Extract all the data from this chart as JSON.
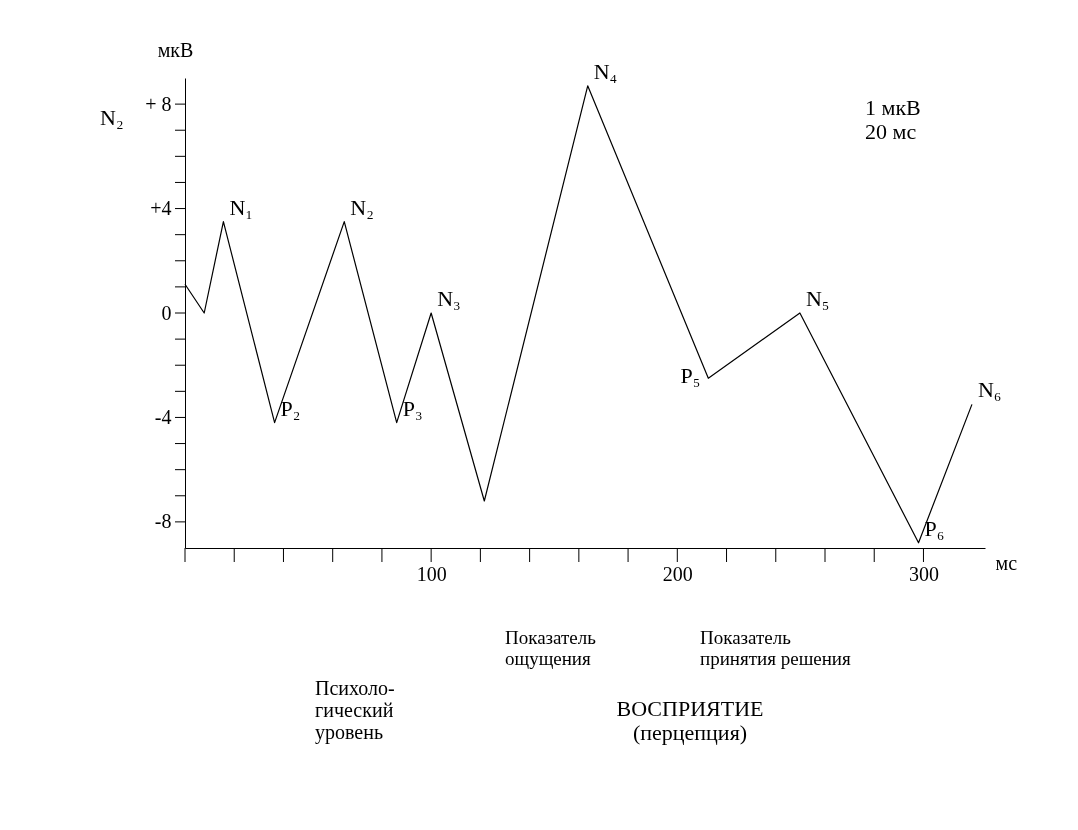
{
  "chart_data": {
    "type": "line",
    "xlabel": "мс",
    "ylabel": "мкВ",
    "x": [
      0,
      7.8,
      15.6,
      36.4,
      64.7,
      86,
      100,
      121.6,
      163.6,
      212.6,
      249.8,
      298,
      319.7
    ],
    "series": [
      {
        "color": "#000000",
        "values": [
          1.1,
          0,
          3.5,
          -4.2,
          3.5,
          -4.2,
          0,
          -7.2,
          8.7,
          -2.5,
          0,
          -8.8,
          -3.5
        ]
      }
    ],
    "xlim": [
      0,
      325
    ],
    "ylim": [
      -9,
      9
    ],
    "xticks": [
      {
        "value": 0,
        "label": null
      },
      {
        "value": 20,
        "label": null
      },
      {
        "value": 40,
        "label": null
      },
      {
        "value": 60,
        "label": null
      },
      {
        "value": 80,
        "label": null
      },
      100,
      {
        "value": 120,
        "label": null
      },
      {
        "value": 140,
        "label": null
      },
      {
        "value": 160,
        "label": null
      },
      {
        "value": 180,
        "label": null
      },
      200,
      {
        "value": 220,
        "label": null
      },
      {
        "value": 240,
        "label": null
      },
      {
        "value": 260,
        "label": null
      },
      {
        "value": 280,
        "label": null
      },
      300
    ],
    "yticks": [
      {
        "value": -8,
        "label": "-8"
      },
      {
        "value": -7,
        "label": null
      },
      {
        "value": -6,
        "label": null
      },
      {
        "value": -5,
        "label": null
      },
      {
        "value": -4,
        "label": "-4"
      },
      {
        "value": -3,
        "label": null
      },
      {
        "value": -2,
        "label": null
      },
      {
        "value": -1,
        "label": null
      },
      0,
      {
        "value": 1,
        "label": null
      },
      {
        "value": 2,
        "label": null
      },
      {
        "value": 3,
        "label": null
      },
      {
        "value": 4,
        "label": "+4"
      },
      {
        "value": 5,
        "label": null
      },
      {
        "value": 6,
        "label": null
      },
      {
        "value": 7,
        "label": null
      },
      {
        "value": 8,
        "label": "+ 8"
      }
    ],
    "grid": false,
    "marker": "none",
    "line_style": "solid",
    "annotations": [
      {
        "text": "N₁",
        "x": 15.6,
        "y": 3.5
      },
      {
        "text": "P₂",
        "x": 36.4,
        "y": -4.2
      },
      {
        "text": "N₂",
        "x": 64.7,
        "y": 3.5
      },
      {
        "text": "P₃",
        "x": 86,
        "y": -4.2
      },
      {
        "text": "N₃",
        "x": 100,
        "y": 0
      },
      {
        "text": "N₄",
        "x": 163.6,
        "y": 8.7
      },
      {
        "text": "P₅",
        "x": 212.6,
        "y": -2.5
      },
      {
        "text": "N₅",
        "x": 249.8,
        "y": 0
      },
      {
        "text": "P₆",
        "x": 298,
        "y": -8.8
      },
      {
        "text": "N₆",
        "x": 319.7,
        "y": -3.5
      },
      "N₂",
      "1 мкВ\n20 мс",
      "Психоло-\nгический\nуровень",
      "Показатель\nощущения",
      "Показатель\nпринятия решения",
      "ВОСПРИЯТИЕ\n(перцепция)"
    ]
  }
}
